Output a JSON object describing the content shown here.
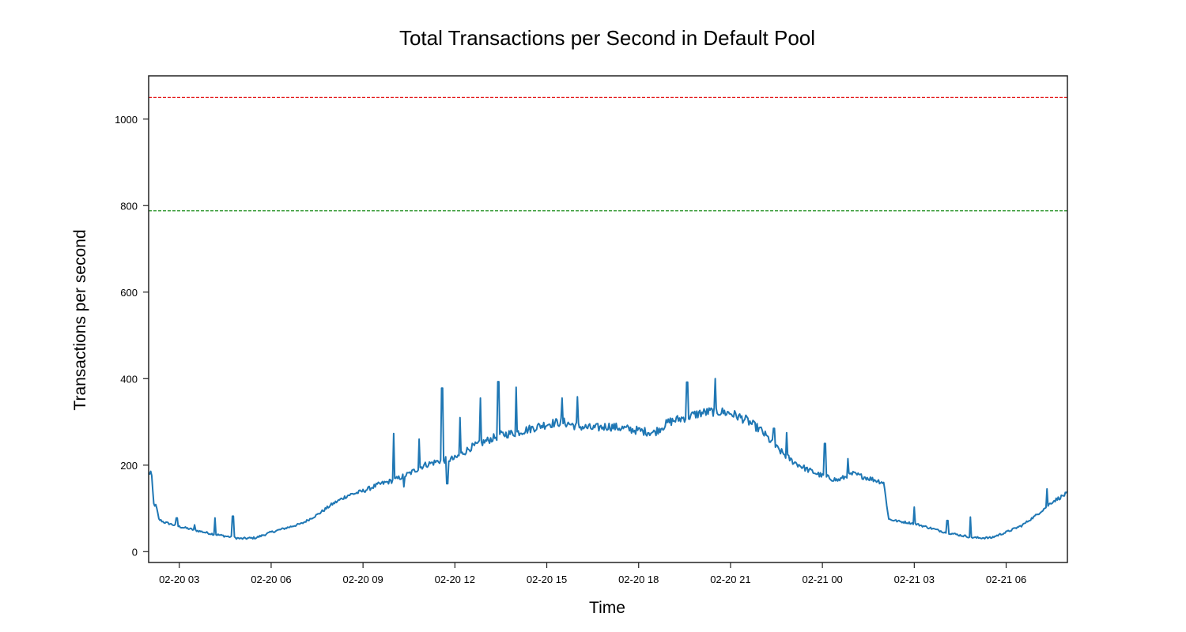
{
  "chart_data": {
    "type": "line",
    "title": "Total Transactions per Second in Default Pool",
    "xlabel": "Time",
    "ylabel": "Transactions per second",
    "x_range": [
      "02-20 02:00",
      "02-21 08:00"
    ],
    "ylim": [
      -25,
      1100
    ],
    "x_ticks": [
      "02-20 03",
      "02-20 06",
      "02-20 09",
      "02-20 12",
      "02-20 15",
      "02-20 18",
      "02-20 21",
      "02-21 00",
      "02-21 03",
      "02-21 06"
    ],
    "y_ticks": [
      0,
      200,
      400,
      600,
      800,
      1000
    ],
    "grid": false,
    "colors": {
      "series": "#1f77b4",
      "upper_threshold": "#e41a1c",
      "lower_threshold": "#008000"
    },
    "reference_lines": [
      {
        "y": 1050,
        "color": "#e41a1c",
        "style": "dashed"
      },
      {
        "y": 788,
        "color": "#008000",
        "style": "dashed"
      }
    ],
    "series": [
      {
        "x": [
          "02-20 02:00",
          "02-20 02:05",
          "02-20 02:10",
          "02-20 02:15",
          "02-20 02:20",
          "02-20 02:30",
          "02-20 02:40",
          "02-20 03:00",
          "02-20 03:30",
          "02-20 04:00",
          "02-20 04:30",
          "02-20 05:00",
          "02-20 05:30",
          "02-20 06:00",
          "02-20 06:30",
          "02-20 07:00",
          "02-20 07:30",
          "02-20 08:00",
          "02-20 08:30",
          "02-20 09:00",
          "02-20 09:30",
          "02-20 10:00",
          "02-20 10:30",
          "02-20 11:00",
          "02-20 11:30",
          "02-20 12:00",
          "02-20 12:30",
          "02-20 13:00",
          "02-20 13:30",
          "02-20 14:00",
          "02-20 14:30",
          "02-20 15:00",
          "02-20 15:30",
          "02-20 16:00",
          "02-20 16:30",
          "02-20 17:00",
          "02-20 17:30",
          "02-20 18:00",
          "02-20 18:30",
          "02-20 19:00",
          "02-20 19:30",
          "02-20 20:00",
          "02-20 20:30",
          "02-20 21:00",
          "02-20 21:30",
          "02-20 22:00",
          "02-20 22:30",
          "02-20 23:00",
          "02-20 23:30",
          "02-21 00:00",
          "02-21 00:30",
          "02-21 01:00",
          "02-21 01:30",
          "02-21 02:00",
          "02-21 02:10",
          "02-21 02:30",
          "02-21 03:00",
          "02-21 03:30",
          "02-21 04:00",
          "02-21 04:30",
          "02-21 05:00",
          "02-21 05:30",
          "02-21 06:00",
          "02-21 06:30",
          "02-21 07:00",
          "02-21 07:30",
          "02-21 08:00"
        ],
        "values": [
          180,
          185,
          110,
          105,
          75,
          68,
          65,
          58,
          50,
          42,
          36,
          30,
          32,
          45,
          55,
          65,
          85,
          110,
          130,
          140,
          155,
          165,
          180,
          200,
          210,
          215,
          240,
          255,
          270,
          275,
          285,
          295,
          300,
          290,
          285,
          290,
          285,
          280,
          275,
          300,
          310,
          320,
          325,
          320,
          305,
          280,
          240,
          210,
          190,
          175,
          165,
          180,
          170,
          160,
          75,
          70,
          65,
          55,
          45,
          38,
          32,
          32,
          45,
          60,
          85,
          115,
          135
        ]
      }
    ],
    "spikes": [
      {
        "x": "02-20 02:55",
        "y": 78
      },
      {
        "x": "02-20 03:30",
        "y": 62
      },
      {
        "x": "02-20 04:10",
        "y": 78
      },
      {
        "x": "02-20 04:45",
        "y": 82
      },
      {
        "x": "02-20 10:00",
        "y": 273
      },
      {
        "x": "02-20 10:20",
        "y": 150
      },
      {
        "x": "02-20 10:50",
        "y": 260
      },
      {
        "x": "02-20 11:35",
        "y": 378
      },
      {
        "x": "02-20 11:45",
        "y": 157
      },
      {
        "x": "02-20 12:10",
        "y": 310
      },
      {
        "x": "02-20 12:50",
        "y": 355
      },
      {
        "x": "02-20 13:25",
        "y": 393
      },
      {
        "x": "02-20 14:00",
        "y": 380
      },
      {
        "x": "02-20 15:30",
        "y": 355
      },
      {
        "x": "02-20 16:00",
        "y": 358
      },
      {
        "x": "02-20 19:35",
        "y": 392
      },
      {
        "x": "02-20 20:30",
        "y": 400
      },
      {
        "x": "02-20 22:25",
        "y": 285
      },
      {
        "x": "02-20 22:50",
        "y": 275
      },
      {
        "x": "02-21 00:05",
        "y": 250
      },
      {
        "x": "02-21 00:50",
        "y": 215
      },
      {
        "x": "02-21 03:00",
        "y": 103
      },
      {
        "x": "02-21 04:05",
        "y": 72
      },
      {
        "x": "02-21 04:50",
        "y": 80
      },
      {
        "x": "02-21 07:20",
        "y": 145
      }
    ]
  }
}
